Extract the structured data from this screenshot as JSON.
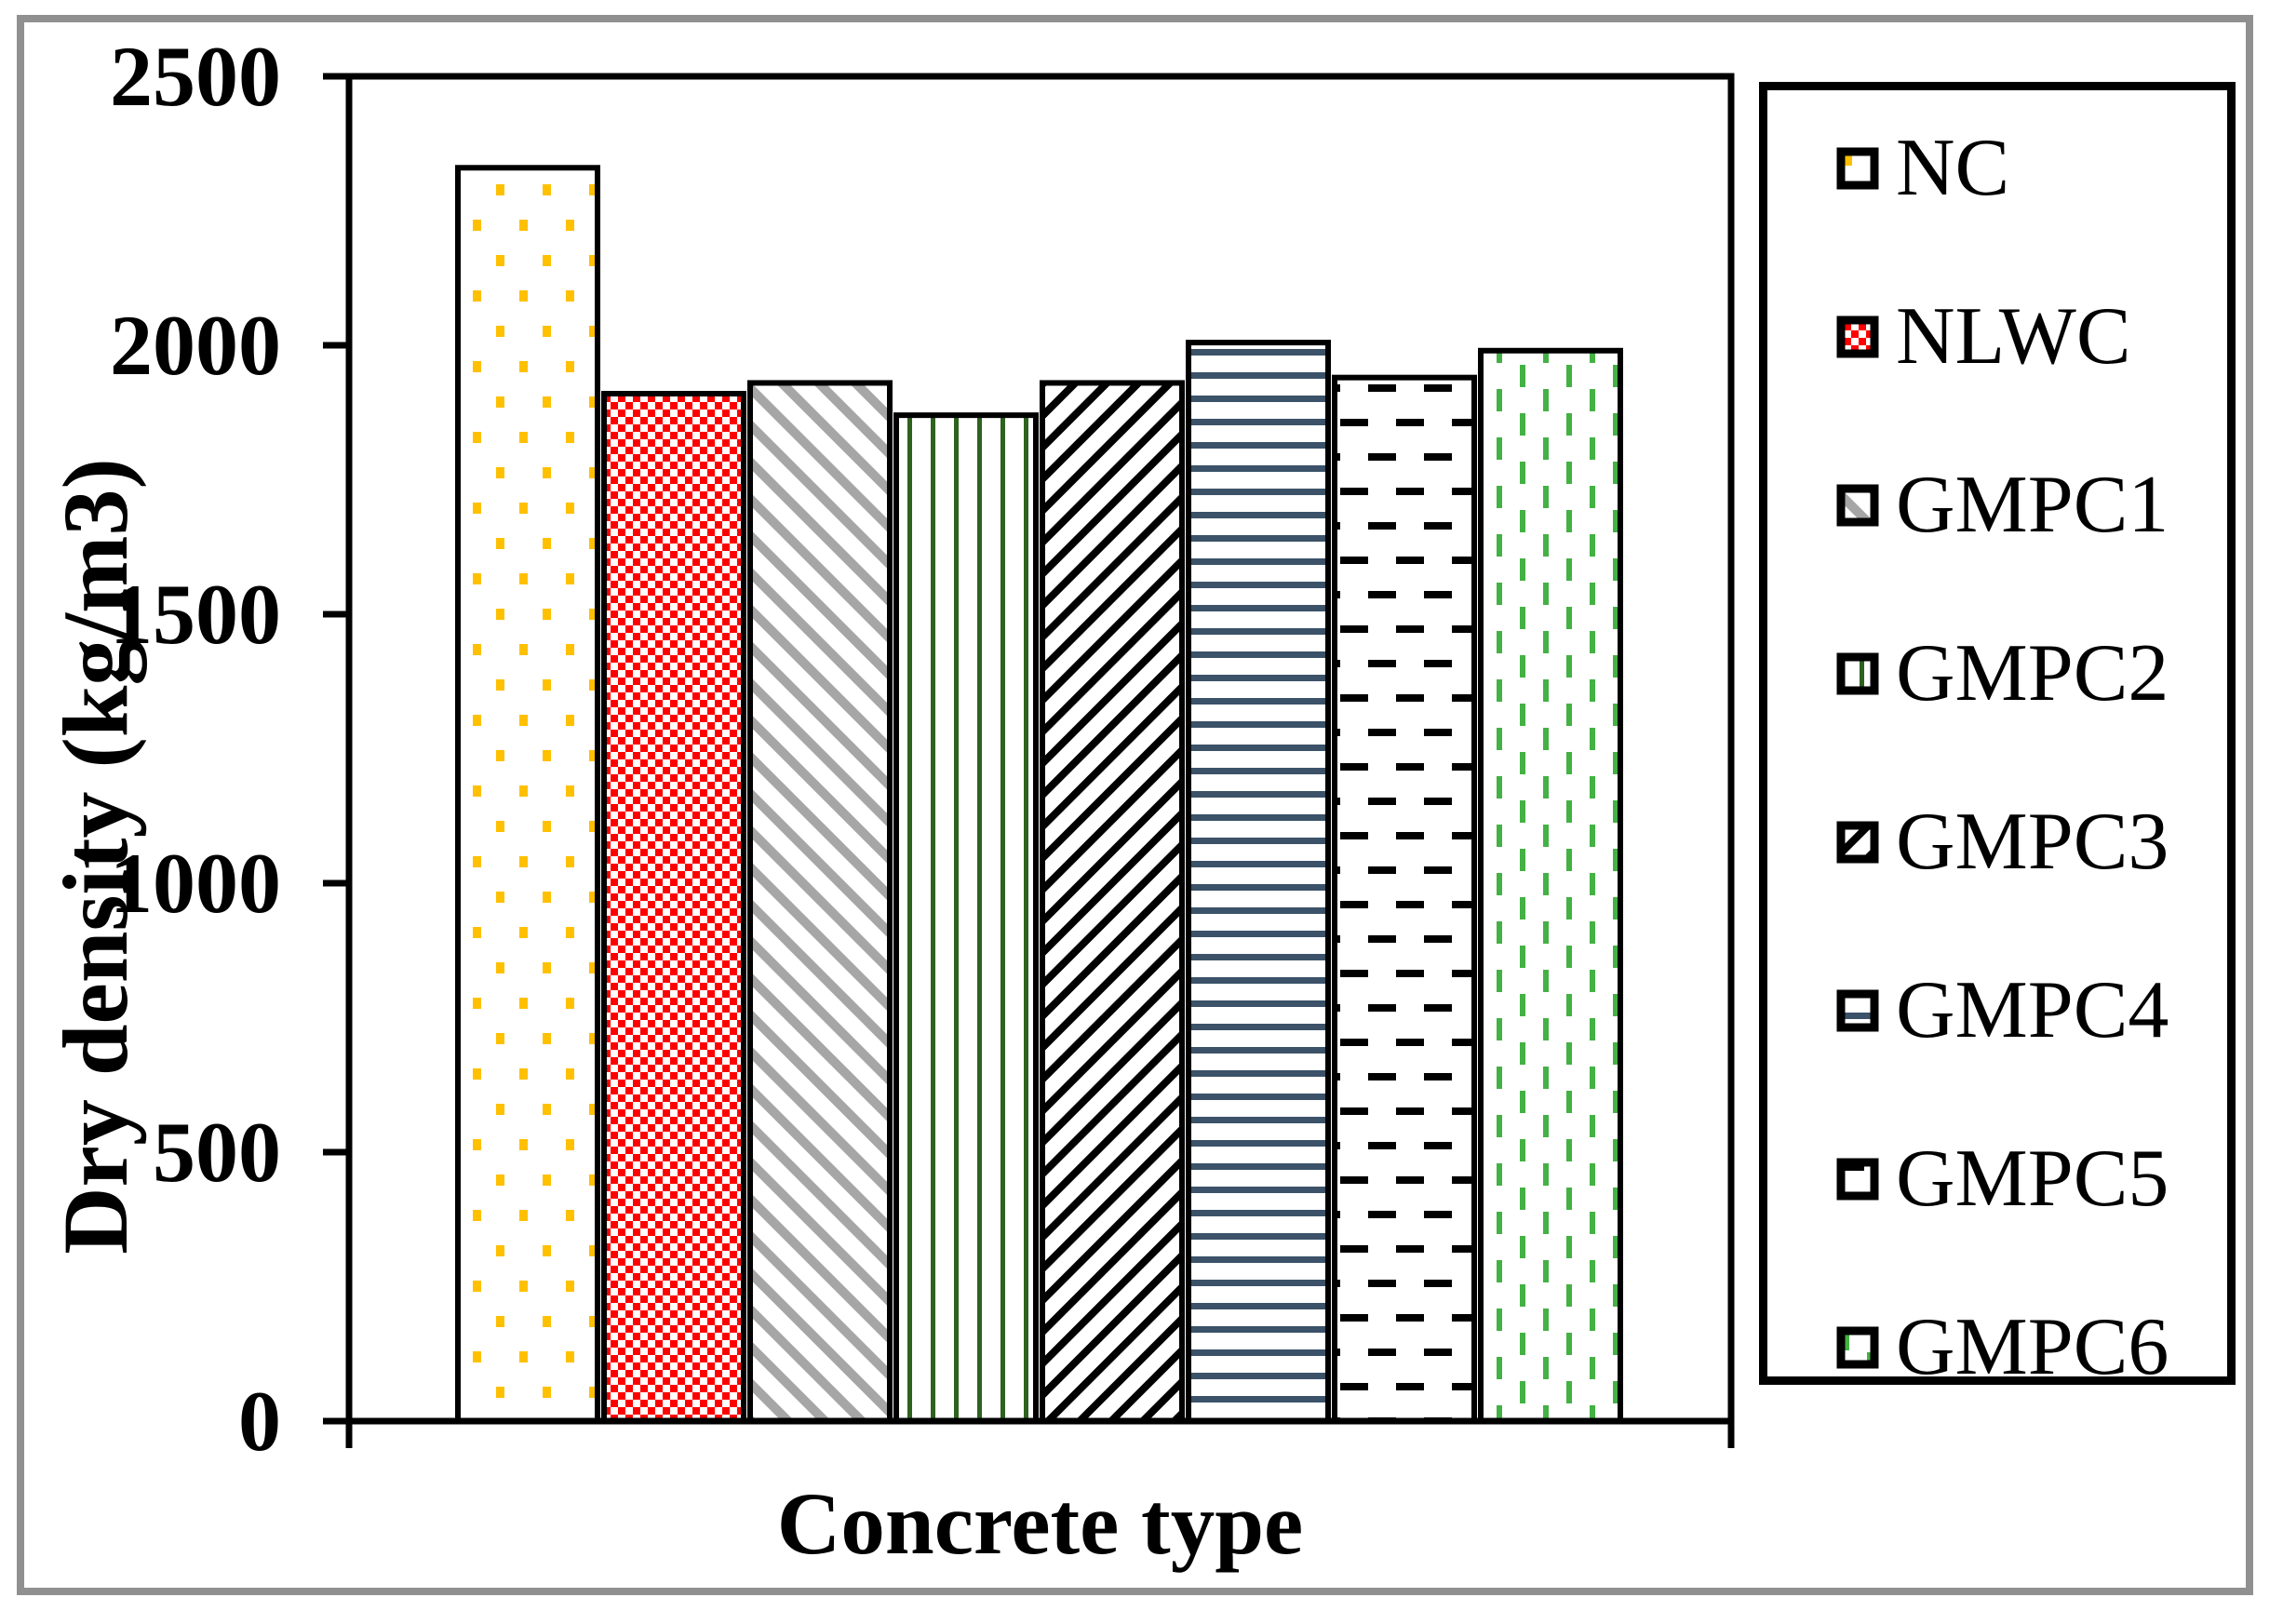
{
  "chart_data": {
    "type": "bar",
    "title": "",
    "xlabel": "Concrete type",
    "ylabel": "Dry density (kg/m3)",
    "categories": [
      "NC",
      "NLWC",
      "GMPC1",
      "GMPC2",
      "GMPC3",
      "GMPC4",
      "GMPC5",
      "GMPC6"
    ],
    "values": [
      2330,
      1910,
      1930,
      1870,
      1930,
      2005,
      1940,
      1990
    ],
    "ylim": [
      0,
      2500
    ],
    "yticks": [
      0,
      500,
      1000,
      1500,
      2000,
      2500
    ],
    "grid": false,
    "legend_position": "right-outside",
    "bar_patterns": [
      {
        "name": "yellow-dots",
        "color": "#FFC000"
      },
      {
        "name": "red-checkerboard",
        "color": "#FE0000"
      },
      {
        "name": "gray-downward-diagonal",
        "color": "#A6A6A6"
      },
      {
        "name": "dark-green-vertical-lines",
        "color": "#2D621F"
      },
      {
        "name": "black-upward-diagonal",
        "color": "#000000"
      },
      {
        "name": "slate-blue-horizontal-lines",
        "color": "#3B5268"
      },
      {
        "name": "black-horizontal-dashes",
        "color": "#000000"
      },
      {
        "name": "green-vertical-dashes",
        "color": "#43B143"
      }
    ],
    "axis_color": "#000000"
  },
  "legend": {
    "items": [
      "NC",
      "NLWC",
      "GMPC1",
      "GMPC2",
      "GMPC3",
      "GMPC4",
      "GMPC5",
      "GMPC6"
    ]
  },
  "frame": {
    "border_color": "#909090"
  }
}
